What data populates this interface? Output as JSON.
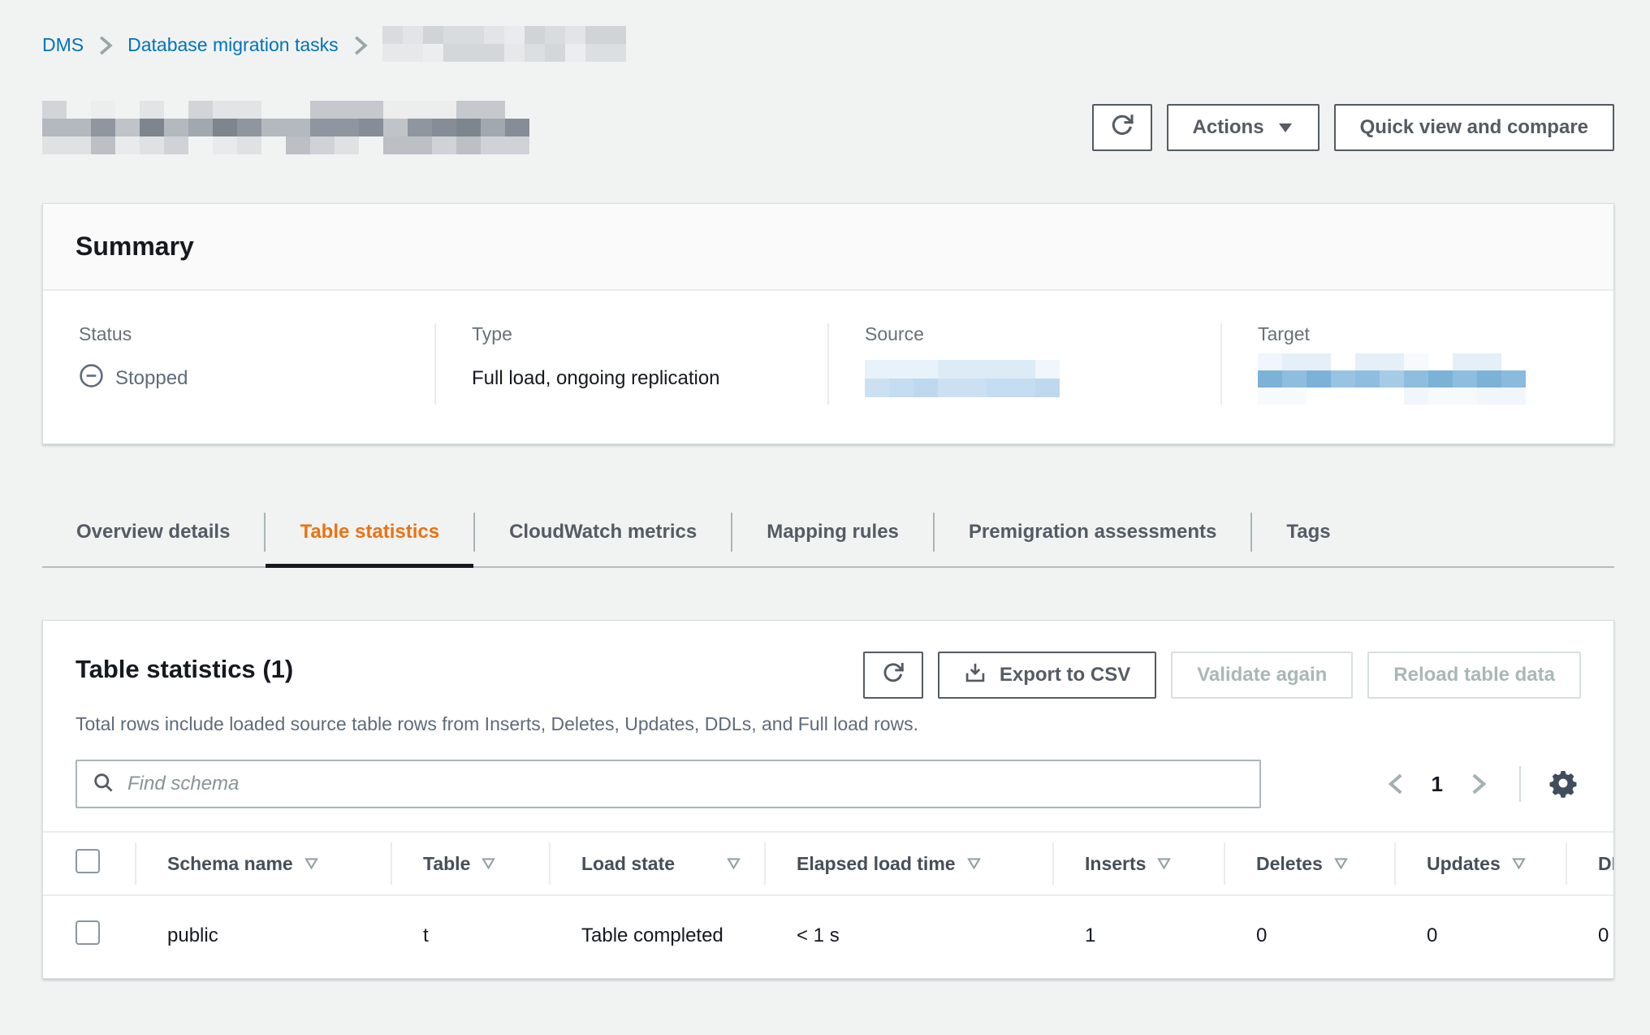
{
  "breadcrumb": {
    "items": [
      {
        "label": "DMS"
      },
      {
        "label": "Database migration tasks"
      }
    ]
  },
  "page_header": {
    "actions_button": "Actions",
    "quick_view_button": "Quick view and compare"
  },
  "summary": {
    "title": "Summary",
    "status_label": "Status",
    "status_value": "Stopped",
    "type_label": "Type",
    "type_value": "Full load, ongoing replication",
    "source_label": "Source",
    "target_label": "Target"
  },
  "tabs": [
    {
      "label": "Overview details"
    },
    {
      "label": "Table statistics"
    },
    {
      "label": "CloudWatch metrics"
    },
    {
      "label": "Mapping rules"
    },
    {
      "label": "Premigration assessments"
    },
    {
      "label": "Tags"
    }
  ],
  "table_section": {
    "title": "Table statistics",
    "count": "(1)",
    "description": "Total rows include loaded source table rows from Inserts, Deletes, Updates, DDLs, and Full load rows.",
    "export_button": "Export to CSV",
    "validate_button": "Validate again",
    "reload_button": "Reload table data",
    "search_placeholder": "Find schema",
    "pagination": {
      "page": "1"
    },
    "columns": [
      "Schema name",
      "Table",
      "Load state",
      "Elapsed load time",
      "Inserts",
      "Deletes",
      "Updates",
      "DDLs"
    ],
    "row": {
      "schema": "public",
      "table": "t",
      "load_state": "Table completed",
      "elapsed": "< 1 s",
      "inserts": "1",
      "deletes": "0",
      "updates": "0",
      "ddls": "0"
    }
  },
  "colors": {
    "accent_orange": "#ec7211",
    "link_blue": "#0073bb",
    "status_gray": "#5f6b7a"
  }
}
